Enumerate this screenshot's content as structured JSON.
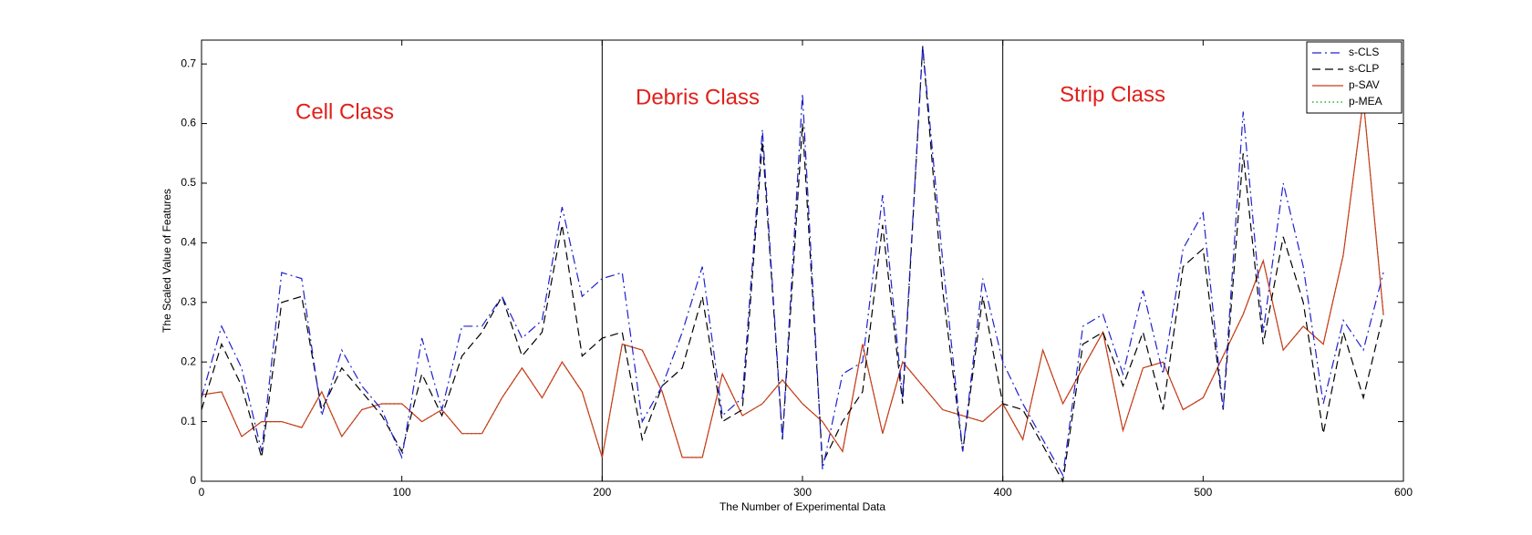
{
  "chart_data": {
    "type": "line",
    "xlabel": "The Number of Experimental Data",
    "ylabel": "The Scaled Value of Features",
    "annotations": [
      "Cell Class",
      "Debris Class",
      "Strip Class"
    ],
    "vlines": [
      200,
      400
    ],
    "x": [
      0,
      10,
      20,
      30,
      40,
      50,
      60,
      70,
      80,
      90,
      100,
      110,
      120,
      130,
      140,
      150,
      160,
      170,
      180,
      190,
      200,
      210,
      220,
      230,
      240,
      250,
      260,
      270,
      280,
      290,
      300,
      310,
      320,
      330,
      340,
      350,
      360,
      370,
      380,
      390,
      400,
      410,
      420,
      430,
      440,
      450,
      460,
      470,
      480,
      490,
      500,
      510,
      520,
      530,
      540,
      550,
      560,
      570,
      580,
      590
    ],
    "series": [
      {
        "name": "s-CLS",
        "color": "#2020d0",
        "style": "dash-dot",
        "values": [
          0.14,
          0.26,
          0.19,
          0.05,
          0.35,
          0.34,
          0.11,
          0.22,
          0.16,
          0.12,
          0.04,
          0.24,
          0.12,
          0.26,
          0.26,
          0.31,
          0.24,
          0.27,
          0.46,
          0.31,
          0.34,
          0.35,
          0.1,
          0.16,
          0.25,
          0.36,
          0.11,
          0.14,
          0.59,
          0.07,
          0.65,
          0.02,
          0.18,
          0.2,
          0.48,
          0.14,
          0.73,
          0.37,
          0.05,
          0.34,
          0.2,
          0.13,
          0.07,
          0.01,
          0.26,
          0.28,
          0.18,
          0.32,
          0.18,
          0.39,
          0.45,
          0.12,
          0.62,
          0.25,
          0.5,
          0.36,
          0.13,
          0.27,
          0.22,
          0.35
        ]
      },
      {
        "name": "s-CLP",
        "color": "#000000",
        "style": "dashed",
        "values": [
          0.12,
          0.23,
          0.16,
          0.04,
          0.3,
          0.31,
          0.12,
          0.19,
          0.15,
          0.11,
          0.05,
          0.18,
          0.11,
          0.21,
          0.25,
          0.31,
          0.21,
          0.25,
          0.43,
          0.21,
          0.24,
          0.25,
          0.07,
          0.16,
          0.19,
          0.31,
          0.1,
          0.12,
          0.57,
          0.07,
          0.6,
          0.03,
          0.1,
          0.15,
          0.43,
          0.13,
          0.73,
          0.32,
          0.05,
          0.31,
          0.13,
          0.12,
          0.06,
          0.0,
          0.23,
          0.25,
          0.16,
          0.25,
          0.12,
          0.36,
          0.39,
          0.12,
          0.55,
          0.23,
          0.41,
          0.3,
          0.08,
          0.25,
          0.14,
          0.28
        ]
      },
      {
        "name": "p-SAV",
        "color": "#cc3a1a",
        "style": "solid",
        "values": [
          0.145,
          0.15,
          0.075,
          0.1,
          0.1,
          0.09,
          0.15,
          0.075,
          0.12,
          0.13,
          0.13,
          0.1,
          0.12,
          0.08,
          0.08,
          0.14,
          0.19,
          0.14,
          0.2,
          0.15,
          0.04,
          0.23,
          0.22,
          0.15,
          0.04,
          0.04,
          0.18,
          0.11,
          0.13,
          0.17,
          0.13,
          0.1,
          0.05,
          0.23,
          0.08,
          0.2,
          0.16,
          0.12,
          0.11,
          0.1,
          0.13,
          0.07,
          0.22,
          0.13,
          0.19,
          0.25,
          0.085,
          0.19,
          0.2,
          0.12,
          0.14,
          0.21,
          0.28,
          0.37,
          0.22,
          0.26,
          0.23,
          0.38,
          0.64,
          0.28
        ]
      },
      {
        "name": "p-MEA",
        "color": "#00a000",
        "style": "dotted",
        "values": [
          0.145,
          0.15,
          0.075,
          0.1,
          0.1,
          0.09,
          0.15,
          0.075,
          0.12,
          0.13,
          0.13,
          0.1,
          0.12,
          0.08,
          0.08,
          0.14,
          0.19,
          0.14,
          0.2,
          0.15,
          0.04,
          0.23,
          0.22,
          0.15,
          0.04,
          0.04,
          0.18,
          0.11,
          0.13,
          0.17,
          0.13,
          0.1,
          0.05,
          0.23,
          0.08,
          0.2,
          0.16,
          0.12,
          0.11,
          0.1,
          0.13,
          0.07,
          0.22,
          0.13,
          0.19,
          0.25,
          0.085,
          0.19,
          0.2,
          0.12,
          0.14,
          0.21,
          0.28,
          0.37,
          0.22,
          0.26,
          0.23,
          0.38,
          0.64,
          0.28
        ]
      }
    ],
    "xlim": [
      0,
      600
    ],
    "xticks": [
      0,
      100,
      200,
      300,
      400,
      500,
      600
    ],
    "ylim": [
      0,
      0.74
    ],
    "yticks": [
      0,
      0.1,
      0.2,
      0.3,
      0.4,
      0.5,
      0.6,
      0.7
    ],
    "legend": "northeast"
  }
}
